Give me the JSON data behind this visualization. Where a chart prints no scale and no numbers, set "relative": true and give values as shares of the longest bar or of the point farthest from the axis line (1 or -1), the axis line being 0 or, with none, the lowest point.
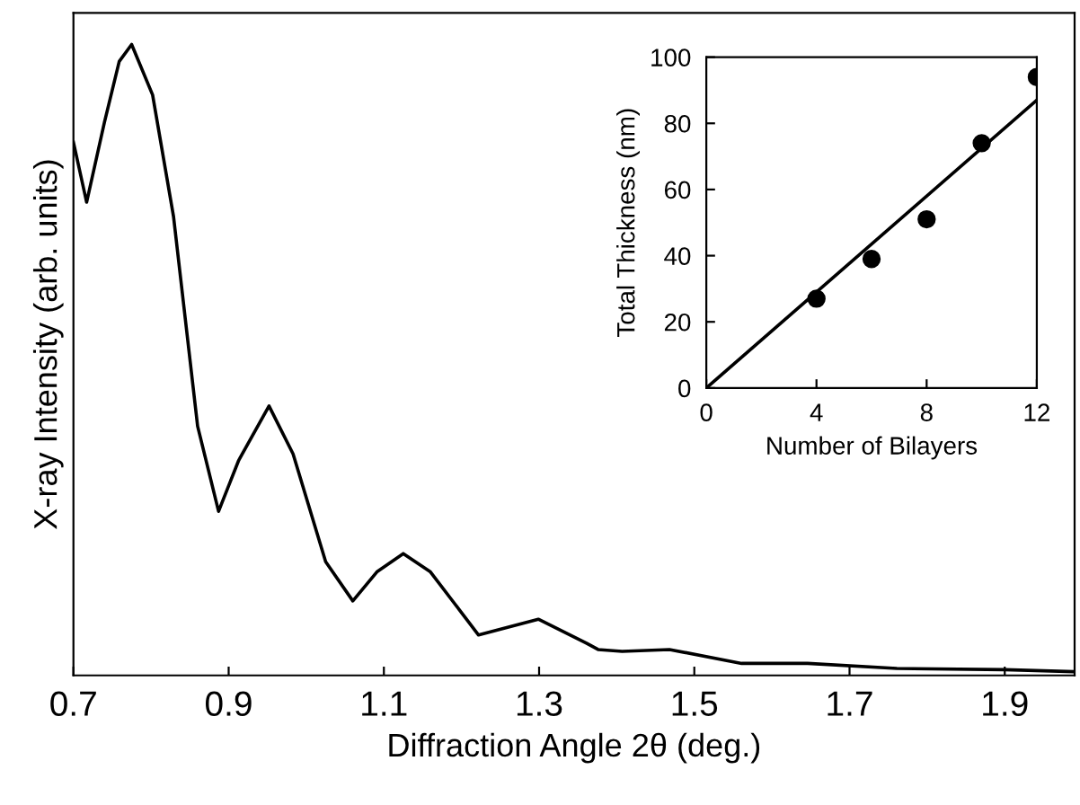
{
  "chart_data": [
    {
      "type": "line",
      "relative": true,
      "xlabel": "Diffraction Angle 2θ (deg.)",
      "ylabel": "X-ray Intensity (arb. units)",
      "xlim": [
        0.7,
        1.99
      ],
      "xticks": [
        0.7,
        0.9,
        1.1,
        1.3,
        1.5,
        1.7,
        1.9
      ],
      "grid": false,
      "legend": false,
      "series": [
        {
          "color": "#000000",
          "x": [
            0.7,
            0.717,
            0.74,
            0.759,
            0.775,
            0.802,
            0.829,
            0.86,
            0.887,
            0.913,
            0.952,
            0.983,
            1.025,
            1.06,
            1.091,
            1.125,
            1.16,
            1.222,
            1.299,
            1.361,
            1.376,
            1.407,
            1.468,
            1.561,
            1.646,
            1.761,
            1.9,
            1.988
          ],
          "values": [
            0.845,
            0.75,
            0.877,
            0.973,
            1.0,
            0.92,
            0.727,
            0.395,
            0.26,
            0.341,
            0.427,
            0.351,
            0.18,
            0.118,
            0.164,
            0.193,
            0.164,
            0.064,
            0.089,
            0.051,
            0.041,
            0.038,
            0.041,
            0.019,
            0.019,
            0.011,
            0.009,
            0.006
          ]
        }
      ]
    },
    {
      "type": "scatter",
      "xlabel": "Number of Bilayers",
      "ylabel": "Total Thickness (nm)",
      "xlim": [
        0,
        12
      ],
      "xticks": [
        0,
        4,
        8,
        12
      ],
      "ylim": [
        0,
        100
      ],
      "yticks": [
        0,
        20,
        40,
        60,
        80,
        100
      ],
      "grid": false,
      "legend": false,
      "series": [
        {
          "color": "#000000",
          "marker": "circle",
          "x": [
            4,
            6,
            8,
            10,
            12
          ],
          "values": [
            27,
            39,
            51,
            74,
            94
          ]
        },
        {
          "type": "line",
          "color": "#000000",
          "marker": "none",
          "x": [
            0,
            12
          ],
          "values": [
            0,
            87
          ]
        }
      ]
    }
  ]
}
